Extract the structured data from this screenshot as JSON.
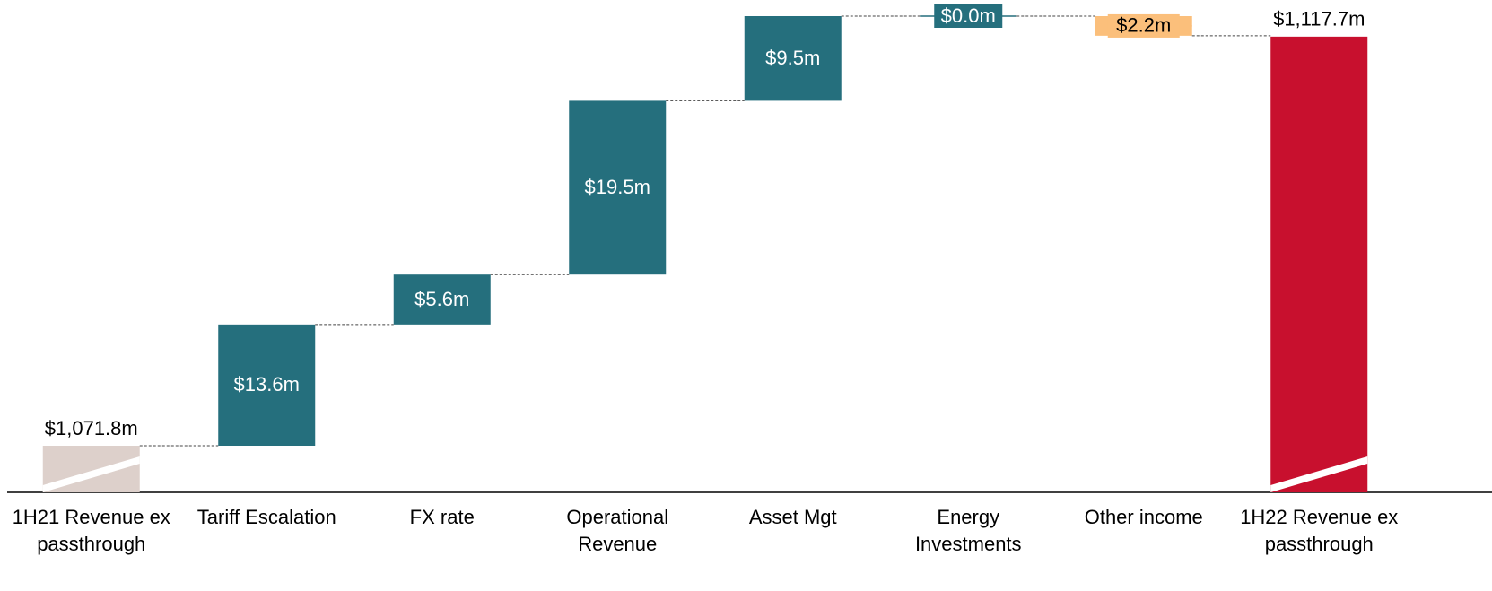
{
  "chart_data": {
    "type": "waterfall",
    "categories": [
      "1H21 Revenue ex passthrough",
      "Tariff Escalation",
      "FX rate",
      "Operational Revenue",
      "Asset Mgt",
      "Energy Investments",
      "Other income",
      "1H22 Revenue ex passthrough"
    ],
    "values": [
      1071.8,
      13.6,
      5.6,
      19.5,
      9.5,
      0.0,
      -2.2,
      1117.7
    ],
    "value_labels": [
      "$1,071.8m",
      "$13.6m",
      "$5.6m",
      "$19.5m",
      "$9.5m",
      "$0.0m",
      "$2.2m",
      "$1,117.7m"
    ],
    "colors": [
      "#ddd0cb",
      "#256f7d",
      "#256f7d",
      "#256f7d",
      "#256f7d",
      "#256f7d",
      "#fbbf7b",
      "#c8102e"
    ]
  }
}
